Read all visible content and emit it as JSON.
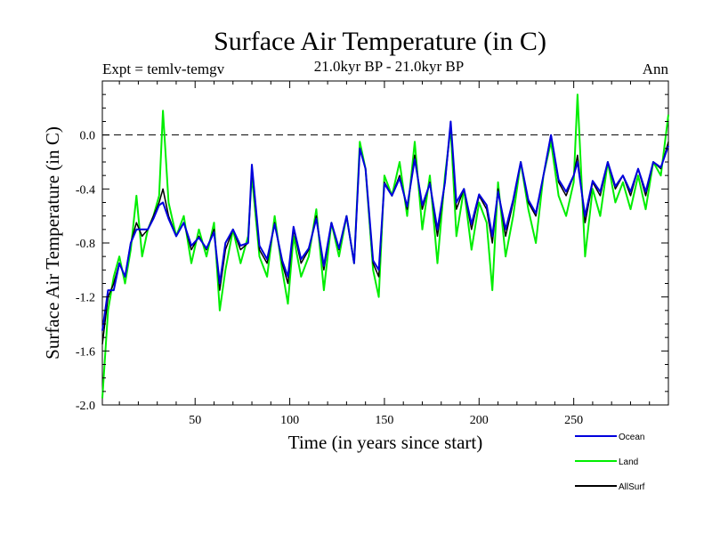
{
  "chart_data": {
    "type": "line",
    "title": "Surface Air Temperature (in C)",
    "subtitle_left": "Expt = temlv-temgv",
    "subtitle_center": "21.0kyr BP - 21.0kyr BP",
    "subtitle_right": "Ann",
    "xlabel": "Time (in years since start)",
    "ylabel": "Surface Air Temperature (in C)",
    "xlim": [
      1,
      300
    ],
    "ylim": [
      -2.0,
      0.4
    ],
    "xticks": [
      50,
      100,
      150,
      200,
      250
    ],
    "xtick_labels": [
      "50",
      "100",
      "150",
      "200",
      "250"
    ],
    "yticks": [
      -2.0,
      -1.6,
      -1.2,
      -0.8,
      -0.4,
      0.0
    ],
    "ytick_labels": [
      "-2.0",
      "-1.6",
      "-1.2",
      "-0.8",
      "-0.4",
      "0.0"
    ],
    "reference_line": 0.0,
    "legend_position": "below-right",
    "series": [
      {
        "name": "Land",
        "color": "#00ee00",
        "x": [
          1,
          4,
          7,
          10,
          13,
          16,
          19,
          22,
          25,
          28,
          31,
          33,
          36,
          40,
          44,
          48,
          52,
          56,
          60,
          63,
          66,
          70,
          74,
          78,
          80,
          84,
          88,
          92,
          96,
          99,
          102,
          106,
          110,
          114,
          118,
          122,
          126,
          130,
          134,
          137,
          140,
          144,
          147,
          150,
          154,
          158,
          162,
          166,
          170,
          174,
          178,
          182,
          185,
          188,
          192,
          196,
          200,
          204,
          207,
          210,
          214,
          218,
          222,
          226,
          230,
          234,
          238,
          242,
          246,
          250,
          252,
          256,
          260,
          264,
          268,
          272,
          276,
          280,
          284,
          288,
          292,
          296,
          300
        ],
        "y": [
          -1.95,
          -1.3,
          -1.05,
          -0.9,
          -1.1,
          -0.85,
          -0.45,
          -0.9,
          -0.7,
          -0.6,
          -0.45,
          0.18,
          -0.5,
          -0.75,
          -0.6,
          -0.95,
          -0.7,
          -0.9,
          -0.65,
          -1.3,
          -1.0,
          -0.7,
          -0.95,
          -0.75,
          -0.3,
          -0.9,
          -1.05,
          -0.6,
          -1.0,
          -1.25,
          -0.75,
          -1.05,
          -0.9,
          -0.55,
          -1.15,
          -0.65,
          -0.9,
          -0.6,
          -0.95,
          -0.05,
          -0.25,
          -1.0,
          -1.2,
          -0.3,
          -0.45,
          -0.2,
          -0.6,
          -0.05,
          -0.7,
          -0.3,
          -0.95,
          -0.3,
          0.05,
          -0.75,
          -0.4,
          -0.85,
          -0.5,
          -0.65,
          -1.15,
          -0.35,
          -0.9,
          -0.6,
          -0.2,
          -0.55,
          -0.8,
          -0.3,
          -0.05,
          -0.45,
          -0.6,
          -0.35,
          0.3,
          -0.9,
          -0.4,
          -0.6,
          -0.2,
          -0.5,
          -0.35,
          -0.55,
          -0.3,
          -0.55,
          -0.2,
          -0.3,
          0.15
        ]
      },
      {
        "name": "AllSurf",
        "color": "#000000",
        "x": [
          1,
          4,
          7,
          10,
          13,
          16,
          19,
          22,
          25,
          28,
          31,
          33,
          36,
          40,
          44,
          48,
          52,
          56,
          60,
          63,
          66,
          70,
          74,
          78,
          80,
          84,
          88,
          92,
          96,
          99,
          102,
          106,
          110,
          114,
          118,
          122,
          126,
          130,
          134,
          137,
          140,
          144,
          147,
          150,
          154,
          158,
          162,
          166,
          170,
          174,
          178,
          182,
          185,
          188,
          192,
          196,
          200,
          204,
          207,
          210,
          214,
          218,
          222,
          226,
          230,
          234,
          238,
          242,
          246,
          250,
          252,
          256,
          260,
          264,
          268,
          272,
          276,
          280,
          284,
          288,
          292,
          296,
          300
        ],
        "y": [
          -1.55,
          -1.2,
          -1.1,
          -0.95,
          -1.05,
          -0.8,
          -0.65,
          -0.75,
          -0.7,
          -0.6,
          -0.5,
          -0.4,
          -0.6,
          -0.75,
          -0.65,
          -0.85,
          -0.75,
          -0.85,
          -0.7,
          -1.15,
          -0.85,
          -0.7,
          -0.85,
          -0.8,
          -0.25,
          -0.85,
          -0.95,
          -0.65,
          -0.95,
          -1.1,
          -0.7,
          -0.95,
          -0.85,
          -0.6,
          -1.0,
          -0.65,
          -0.85,
          -0.6,
          -0.95,
          -0.1,
          -0.25,
          -0.95,
          -1.05,
          -0.35,
          -0.45,
          -0.3,
          -0.55,
          -0.15,
          -0.55,
          -0.35,
          -0.75,
          -0.35,
          0.08,
          -0.55,
          -0.4,
          -0.7,
          -0.45,
          -0.55,
          -0.8,
          -0.4,
          -0.75,
          -0.5,
          -0.2,
          -0.5,
          -0.6,
          -0.3,
          0.0,
          -0.35,
          -0.45,
          -0.3,
          -0.15,
          -0.65,
          -0.35,
          -0.45,
          -0.2,
          -0.4,
          -0.3,
          -0.45,
          -0.25,
          -0.45,
          -0.2,
          -0.25,
          -0.05
        ]
      },
      {
        "name": "Ocean",
        "color": "#0000dd",
        "x": [
          1,
          4,
          7,
          10,
          13,
          16,
          19,
          22,
          25,
          28,
          31,
          33,
          36,
          40,
          44,
          48,
          52,
          56,
          60,
          63,
          66,
          70,
          74,
          78,
          80,
          84,
          88,
          92,
          96,
          99,
          102,
          106,
          110,
          114,
          118,
          122,
          126,
          130,
          134,
          137,
          140,
          144,
          147,
          150,
          154,
          158,
          162,
          166,
          170,
          174,
          178,
          182,
          185,
          188,
          192,
          196,
          200,
          204,
          207,
          210,
          214,
          218,
          222,
          226,
          230,
          234,
          238,
          242,
          246,
          250,
          252,
          256,
          260,
          264,
          268,
          272,
          276,
          280,
          284,
          288,
          292,
          296,
          300
        ],
        "y": [
          -1.45,
          -1.15,
          -1.15,
          -0.95,
          -1.05,
          -0.8,
          -0.7,
          -0.7,
          -0.7,
          -0.62,
          -0.52,
          -0.5,
          -0.62,
          -0.75,
          -0.65,
          -0.82,
          -0.76,
          -0.84,
          -0.72,
          -1.1,
          -0.8,
          -0.7,
          -0.82,
          -0.8,
          -0.22,
          -0.82,
          -0.92,
          -0.66,
          -0.93,
          -1.05,
          -0.68,
          -0.92,
          -0.84,
          -0.62,
          -0.97,
          -0.65,
          -0.84,
          -0.6,
          -0.95,
          -0.1,
          -0.25,
          -0.93,
          -1.0,
          -0.36,
          -0.45,
          -0.32,
          -0.53,
          -0.18,
          -0.52,
          -0.36,
          -0.7,
          -0.35,
          0.1,
          -0.5,
          -0.4,
          -0.66,
          -0.44,
          -0.52,
          -0.75,
          -0.42,
          -0.7,
          -0.48,
          -0.2,
          -0.48,
          -0.58,
          -0.3,
          0.0,
          -0.33,
          -0.42,
          -0.3,
          -0.2,
          -0.6,
          -0.34,
          -0.42,
          -0.2,
          -0.38,
          -0.3,
          -0.42,
          -0.25,
          -0.42,
          -0.2,
          -0.24,
          -0.08
        ]
      }
    ]
  }
}
